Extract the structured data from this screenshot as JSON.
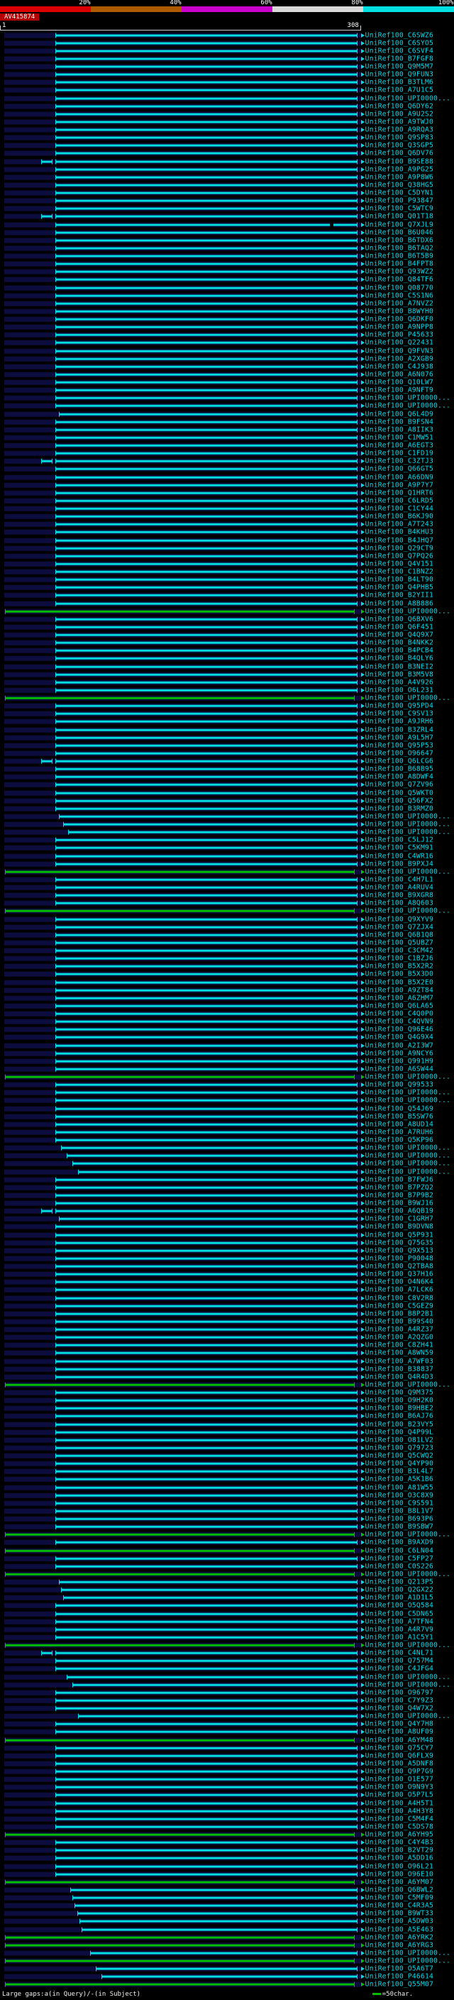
{
  "header": {
    "query_name": "AV415874",
    "scale": {
      "start": "1",
      "end": "308"
    }
  },
  "footer": {
    "gaps_legend": "Large gaps:a(in Query)/-(in Subject)",
    "scale_legend": "=50char."
  },
  "colors": {
    "hit_high": "#00e0e0",
    "hit_low": "#00c000",
    "row_band": "#0c0c3e",
    "query_strip": "#b40000",
    "label_text": "#00d8e8"
  },
  "chart_data": {
    "type": "bar",
    "subtype": "blast-alignment-overview",
    "orientation": "horizontal",
    "title": "BLAST graphical overview",
    "query": "AV415874",
    "x_axis": {
      "label": "query position",
      "min": 1,
      "max": 308
    },
    "identity_scale": {
      "labels": [
        "20%",
        "40%",
        "60%",
        "80%",
        "100%"
      ],
      "colors": [
        "#dd0000",
        "#b05a00",
        "#cc00cc",
        "#d8d8d8",
        "#00e0e0"
      ]
    },
    "label_prefix": "UniRef100_",
    "defaults": {
      "cyan": {
        "start": 45,
        "end": 305
      },
      "green": {
        "start": 2,
        "end": 303
      }
    },
    "rows": [
      {
        "id": "C6SWZ6"
      },
      {
        "id": "C6SYO5"
      },
      {
        "id": "C6SVF4"
      },
      {
        "id": "B7FGF8"
      },
      {
        "id": "Q9M5M7"
      },
      {
        "id": "Q9FUN3"
      },
      {
        "id": "B3TLM6"
      },
      {
        "id": "A7U1C5"
      },
      {
        "id": "UPI0000..."
      },
      {
        "id": "Q6DY62"
      },
      {
        "id": "A9U2S2"
      },
      {
        "id": "A9TWJ0"
      },
      {
        "id": "A9RQA3"
      },
      {
        "id": "Q9SP83"
      },
      {
        "id": "Q3SGP5"
      },
      {
        "id": "Q6DV76"
      },
      {
        "id": "B9SE88",
        "seg2": [
          33,
          42
        ]
      },
      {
        "id": "A9PG25"
      },
      {
        "id": "A9P8W6"
      },
      {
        "id": "Q38HG5"
      },
      {
        "id": "C5DYN1"
      },
      {
        "id": "P93847"
      },
      {
        "id": "C5WTC9"
      },
      {
        "id": "Q01T18",
        "seg2": [
          33,
          42
        ]
      },
      {
        "id": "Q7XJL9",
        "gap": 282
      },
      {
        "id": "B6U046"
      },
      {
        "id": "B6TDX6"
      },
      {
        "id": "B6TAQ2"
      },
      {
        "id": "B6T5B9"
      },
      {
        "id": "B4FPT8"
      },
      {
        "id": "Q93WZ2"
      },
      {
        "id": "Q84TF6"
      },
      {
        "id": "Q08770"
      },
      {
        "id": "C5S1N6"
      },
      {
        "id": "A7NVZ2"
      },
      {
        "id": "B8WYH0"
      },
      {
        "id": "Q6DKF0"
      },
      {
        "id": "A9NPP8"
      },
      {
        "id": "P45633"
      },
      {
        "id": "Q22431"
      },
      {
        "id": "Q9FVN3"
      },
      {
        "id": "A2XGB9"
      },
      {
        "id": "C4J938"
      },
      {
        "id": "A6N076"
      },
      {
        "id": "Q10LW7"
      },
      {
        "id": "A9NFT9"
      },
      {
        "id": "UPI0000..."
      },
      {
        "id": "UPI0000..."
      },
      {
        "id": "Q6L4D9",
        "start": 48
      },
      {
        "id": "B9FSN4"
      },
      {
        "id": "A8IIK3"
      },
      {
        "id": "C1MW51"
      },
      {
        "id": "A6EGT3"
      },
      {
        "id": "C1FD19"
      },
      {
        "id": "C3ZTJ3",
        "seg2": [
          33,
          42
        ]
      },
      {
        "id": "Q66GT5"
      },
      {
        "id": "A66DN9"
      },
      {
        "id": "A9P7Y7"
      },
      {
        "id": "Q1HRT6"
      },
      {
        "id": "C6LRD5"
      },
      {
        "id": "C1CY44"
      },
      {
        "id": "B6KJ90"
      },
      {
        "id": "A7T243"
      },
      {
        "id": "B4KHU3"
      },
      {
        "id": "B4JHQ7"
      },
      {
        "id": "Q29CT9"
      },
      {
        "id": "Q7PQ26"
      },
      {
        "id": "Q4V151"
      },
      {
        "id": "C1BNZ2"
      },
      {
        "id": "B4LT90"
      },
      {
        "id": "Q4PHB5"
      },
      {
        "id": "B2YII1"
      },
      {
        "id": "A8B886"
      },
      {
        "id": "UPI0000...",
        "color": "green"
      },
      {
        "id": "Q6BXV6"
      },
      {
        "id": "Q6F451"
      },
      {
        "id": "Q4Q9X7"
      },
      {
        "id": "B4NKK2"
      },
      {
        "id": "B4PCB4"
      },
      {
        "id": "B4QLY6"
      },
      {
        "id": "B3NEI2"
      },
      {
        "id": "B3M5V8"
      },
      {
        "id": "A4V926"
      },
      {
        "id": "O6L231"
      },
      {
        "id": "UPI0000...",
        "color": "green"
      },
      {
        "id": "Q95PD4"
      },
      {
        "id": "C9SV13"
      },
      {
        "id": "A9JRH6"
      },
      {
        "id": "B3ZRL4"
      },
      {
        "id": "A9L5H7"
      },
      {
        "id": "Q95P53"
      },
      {
        "id": "O96647"
      },
      {
        "id": "Q6LCG6",
        "seg2": [
          33,
          42
        ]
      },
      {
        "id": "B68B95"
      },
      {
        "id": "A8DWF4"
      },
      {
        "id": "Q7ZV96"
      },
      {
        "id": "Q5WKT0"
      },
      {
        "id": "Q56FX2"
      },
      {
        "id": "B3RMZ0"
      },
      {
        "id": "UPI0000...",
        "start": 48
      },
      {
        "id": "UPI0000...",
        "start": 52
      },
      {
        "id": "UPI0000...",
        "start": 56
      },
      {
        "id": "C5LJ12"
      },
      {
        "id": "C5KM91"
      },
      {
        "id": "C4WR16"
      },
      {
        "id": "B9PXJ4"
      },
      {
        "id": "UPI0000...",
        "color": "green"
      },
      {
        "id": "C4H7L1"
      },
      {
        "id": "A4RUV4"
      },
      {
        "id": "B9XGR8"
      },
      {
        "id": "A8Q603"
      },
      {
        "id": "UPI0000...",
        "color": "green"
      },
      {
        "id": "Q9XYV9"
      },
      {
        "id": "Q7ZJX4"
      },
      {
        "id": "Q6B1Q8"
      },
      {
        "id": "Q5UBZ7"
      },
      {
        "id": "C3CM42"
      },
      {
        "id": "C1BZJ6"
      },
      {
        "id": "B5X2R2"
      },
      {
        "id": "B5X3D0"
      },
      {
        "id": "B5X2E0"
      },
      {
        "id": "A9ZT84"
      },
      {
        "id": "A6ZHM7"
      },
      {
        "id": "Q6LA65"
      },
      {
        "id": "C4Q0P0"
      },
      {
        "id": "C4QVN9"
      },
      {
        "id": "Q96E46"
      },
      {
        "id": "Q4G9X4"
      },
      {
        "id": "A2I3W7"
      },
      {
        "id": "A9NCY6"
      },
      {
        "id": "Q991H9"
      },
      {
        "id": "A6SW44"
      },
      {
        "id": "UPI0000...",
        "color": "green"
      },
      {
        "id": "Q99533"
      },
      {
        "id": "UPI0000..."
      },
      {
        "id": "UPI0000..."
      },
      {
        "id": "Q54J69"
      },
      {
        "id": "B5SW76"
      },
      {
        "id": "A8UD14"
      },
      {
        "id": "A7RUH6"
      },
      {
        "id": "Q5KP96"
      },
      {
        "id": "UPI0000...",
        "start": 50
      },
      {
        "id": "UPI0000...",
        "start": 55
      },
      {
        "id": "UPI0000...",
        "start": 60
      },
      {
        "id": "UPI0000...",
        "start": 65
      },
      {
        "id": "B7FWJ6"
      },
      {
        "id": "B7PZQ2"
      },
      {
        "id": "B7P9B2"
      },
      {
        "id": "B9WJ16"
      },
      {
        "id": "A6QB19",
        "seg2": [
          33,
          42
        ]
      },
      {
        "id": "C1GRH7",
        "start": 48
      },
      {
        "id": "B9DVN8"
      },
      {
        "id": "Q5P931"
      },
      {
        "id": "Q75G35"
      },
      {
        "id": "Q9X513"
      },
      {
        "id": "P90048"
      },
      {
        "id": "Q2TBA8"
      },
      {
        "id": "Q37H16"
      },
      {
        "id": "O4N6K4"
      },
      {
        "id": "A7LCK6"
      },
      {
        "id": "C8V2R8"
      },
      {
        "id": "C5GEZ9"
      },
      {
        "id": "B8P2B1"
      },
      {
        "id": "B99S40"
      },
      {
        "id": "A4RZ37"
      },
      {
        "id": "A2QZG0"
      },
      {
        "id": "C8ZH41"
      },
      {
        "id": "A8WN59"
      },
      {
        "id": "A7WF03"
      },
      {
        "id": "B38837"
      },
      {
        "id": "Q4R4D3"
      },
      {
        "id": "UPI0000...",
        "color": "green"
      },
      {
        "id": "Q9M375"
      },
      {
        "id": "O9H2K0"
      },
      {
        "id": "B9HBE2"
      },
      {
        "id": "B6AJ76"
      },
      {
        "id": "B23VY5"
      },
      {
        "id": "Q4P99L"
      },
      {
        "id": "O81LV2"
      },
      {
        "id": "Q79723"
      },
      {
        "id": "Q5CWQ2"
      },
      {
        "id": "Q4YP90"
      },
      {
        "id": "B3L4L7"
      },
      {
        "id": "A5K1B6"
      },
      {
        "id": "A81W55"
      },
      {
        "id": "O3C8X9"
      },
      {
        "id": "C9S591"
      },
      {
        "id": "B8L1V7"
      },
      {
        "id": "B693P6"
      },
      {
        "id": "B9SBW7"
      },
      {
        "id": "UPI0000...",
        "color": "green"
      },
      {
        "id": "B9AXD9"
      },
      {
        "id": "C6LN04",
        "color": "green"
      },
      {
        "id": "C5FP27"
      },
      {
        "id": "C0S226"
      },
      {
        "id": "UPI0000...",
        "color": "green"
      },
      {
        "id": "Q213P5",
        "start": 48
      },
      {
        "id": "Q2GX22",
        "start": 50
      },
      {
        "id": "A1D1L5",
        "start": 52
      },
      {
        "id": "O5Q584"
      },
      {
        "id": "C5DN65"
      },
      {
        "id": "A7TFN4"
      },
      {
        "id": "A4R7V9"
      },
      {
        "id": "A1C5Y1"
      },
      {
        "id": "UPI0000...",
        "color": "green"
      },
      {
        "id": "C4NL71",
        "seg2": [
          33,
          42
        ]
      },
      {
        "id": "Q757M4"
      },
      {
        "id": "C4JFG4"
      },
      {
        "id": "UPI0000...",
        "start": 55
      },
      {
        "id": "UPI0000...",
        "start": 60
      },
      {
        "id": "O96797"
      },
      {
        "id": "C7Y9Z3"
      },
      {
        "id": "Q4W7X2"
      },
      {
        "id": "UPI0000...",
        "start": 65
      },
      {
        "id": "Q4Y7H8"
      },
      {
        "id": "A8UF09"
      },
      {
        "id": "A6YM48",
        "color": "green"
      },
      {
        "id": "Q75CY7"
      },
      {
        "id": "Q6FLX9"
      },
      {
        "id": "A5DNF8"
      },
      {
        "id": "Q9P7G9"
      },
      {
        "id": "O1E577"
      },
      {
        "id": "O9N9Y3"
      },
      {
        "id": "O5P7L5"
      },
      {
        "id": "A4H5T1"
      },
      {
        "id": "A4H3Y8"
      },
      {
        "id": "C5M4F4"
      },
      {
        "id": "C5DS78"
      },
      {
        "id": "A6YH95",
        "color": "green"
      },
      {
        "id": "C4Y4B3"
      },
      {
        "id": "B2VT29"
      },
      {
        "id": "A5DD16"
      },
      {
        "id": "O96L21"
      },
      {
        "id": "O96E10"
      },
      {
        "id": "A6YM07",
        "color": "green"
      },
      {
        "id": "Q6BWL2",
        "start": 58
      },
      {
        "id": "C5MF09",
        "start": 60
      },
      {
        "id": "C4R3A5",
        "start": 62
      },
      {
        "id": "B9WT33",
        "start": 64
      },
      {
        "id": "A5DW03",
        "start": 66
      },
      {
        "id": "A5E463",
        "start": 68
      },
      {
        "id": "A6YRK2",
        "color": "green"
      },
      {
        "id": "A6YRG3",
        "color": "green"
      },
      {
        "id": "UPI0000...",
        "start": 75
      },
      {
        "id": "UPI0000...",
        "color": "green"
      },
      {
        "id": "O5A6T7",
        "start": 80
      },
      {
        "id": "P46614",
        "start": 85
      },
      {
        "id": "Q55M07",
        "color": "green"
      }
    ]
  }
}
